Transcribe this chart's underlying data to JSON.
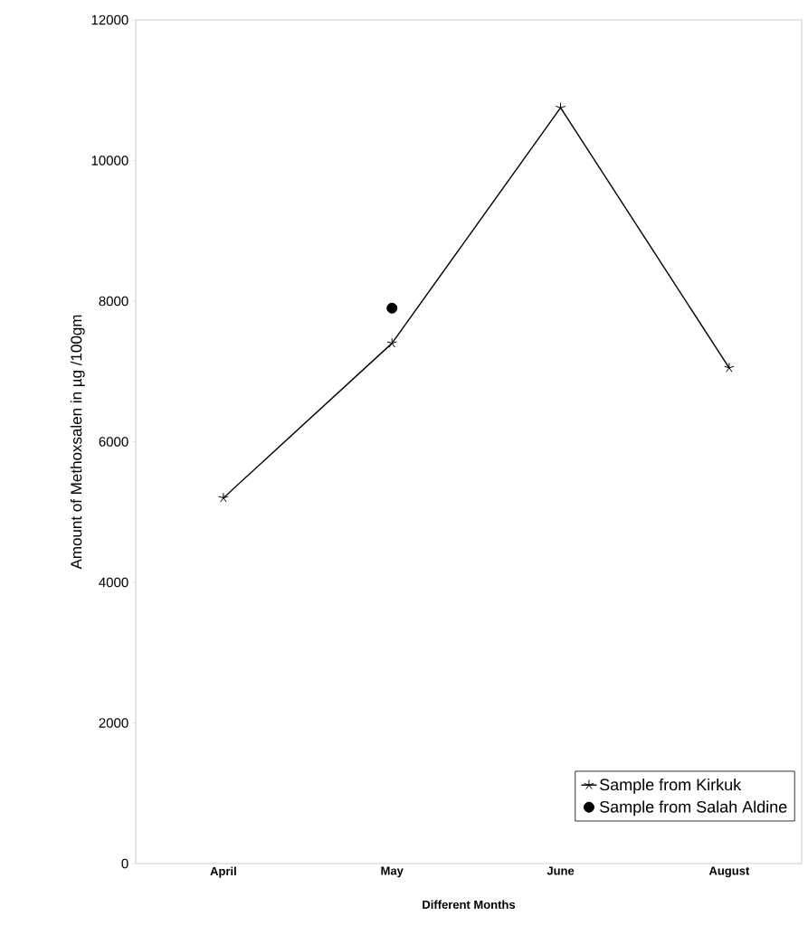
{
  "chart_data": {
    "type": "line",
    "xlabel": "Different Months",
    "ylabel": "Amount of Methoxsalen in µg /100gm",
    "categories": [
      "April",
      "May",
      "June",
      "August"
    ],
    "series": [
      {
        "name": "Sample from Kirkuk",
        "color": "#000000",
        "marker": "cross",
        "values": [
          5200,
          7400,
          10750,
          7050
        ]
      },
      {
        "name": "Sample from Salah Aldine",
        "type": "scatter",
        "color": "#000000",
        "marker": "circle",
        "values": [
          null,
          7900,
          null,
          null
        ]
      }
    ],
    "ylim": [
      0,
      12000
    ],
    "yticks": [
      0,
      2000,
      4000,
      6000,
      8000,
      10000,
      12000
    ],
    "legend": "bottom right"
  }
}
